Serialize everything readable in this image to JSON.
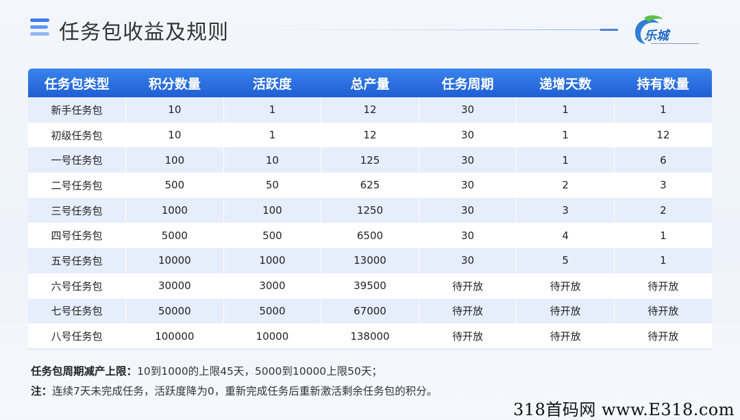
{
  "header": {
    "title": "任务包收益及规则",
    "logo_text": "乐城"
  },
  "table": {
    "columns": [
      "任务包类型",
      "积分数量",
      "活跃度",
      "总产量",
      "任务周期",
      "递增天数",
      "持有数量"
    ],
    "rows": [
      [
        "新手任务包",
        "10",
        "1",
        "12",
        "30",
        "1",
        "1"
      ],
      [
        "初级任务包",
        "10",
        "1",
        "12",
        "30",
        "1",
        "12"
      ],
      [
        "一号任务包",
        "100",
        "10",
        "125",
        "30",
        "1",
        "6"
      ],
      [
        "二号任务包",
        "500",
        "50",
        "625",
        "30",
        "2",
        "3"
      ],
      [
        "三号任务包",
        "1000",
        "100",
        "1250",
        "30",
        "3",
        "2"
      ],
      [
        "四号任务包",
        "5000",
        "500",
        "6500",
        "30",
        "4",
        "1"
      ],
      [
        "五号任务包",
        "10000",
        "1000",
        "13000",
        "30",
        "5",
        "1"
      ],
      [
        "六号任务包",
        "30000",
        "3000",
        "39500",
        "待开放",
        "待开放",
        "待开放"
      ],
      [
        "七号任务包",
        "50000",
        "5000",
        "67000",
        "待开放",
        "待开放",
        "待开放"
      ],
      [
        "八号任务包",
        "100000",
        "10000",
        "138000",
        "待开放",
        "待开放",
        "待开放"
      ]
    ]
  },
  "rules": {
    "line1_label": "任务包周期减产上限：",
    "line1_text": "10到1000的上限45天，5000到10000上限50天；",
    "line2_label": "注：",
    "line2_text": "连续7天未完成任务，活跃度降为0，重新完成任务后重新激活剩余任务包的积分。"
  },
  "watermark": "318首码网 www.E318.com",
  "colors": {
    "header_blue": "#2a6fe0",
    "row_alt": "#e6edfb",
    "logo_blue": "#1f67c6",
    "logo_green": "#4caf50"
  }
}
